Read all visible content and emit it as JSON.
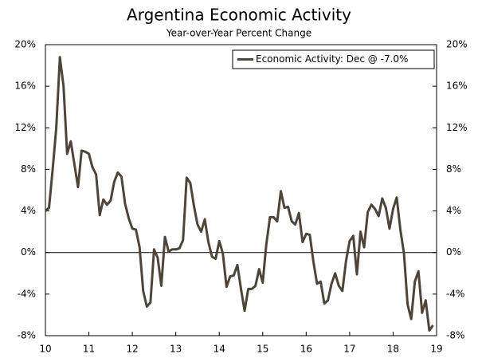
{
  "chart_data": {
    "type": "line",
    "title": "Argentina Economic Activity",
    "subtitle": "Year-over-Year Percent Change",
    "x": [
      10,
      10.083,
      10.167,
      10.25,
      10.333,
      10.417,
      10.5,
      10.583,
      10.667,
      10.75,
      10.833,
      10.917,
      11,
      11.083,
      11.167,
      11.25,
      11.333,
      11.417,
      11.5,
      11.583,
      11.667,
      11.75,
      11.833,
      11.917,
      12,
      12.083,
      12.167,
      12.25,
      12.333,
      12.417,
      12.5,
      12.583,
      12.667,
      12.75,
      12.833,
      12.917,
      13,
      13.083,
      13.167,
      13.25,
      13.333,
      13.417,
      13.5,
      13.583,
      13.667,
      13.75,
      13.833,
      13.917,
      14,
      14.083,
      14.167,
      14.25,
      14.333,
      14.417,
      14.5,
      14.583,
      14.667,
      14.75,
      14.833,
      14.917,
      15,
      15.083,
      15.167,
      15.25,
      15.333,
      15.417,
      15.5,
      15.583,
      15.667,
      15.75,
      15.833,
      15.917,
      16,
      16.083,
      16.167,
      16.25,
      16.333,
      16.417,
      16.5,
      16.583,
      16.667,
      16.75,
      16.833,
      16.917,
      17,
      17.083,
      17.167,
      17.25,
      17.333,
      17.417,
      17.5,
      17.583,
      17.667,
      17.75,
      17.833,
      17.917,
      18,
      18.083,
      18.167,
      18.25,
      18.333,
      18.417,
      18.5,
      18.583,
      18.667,
      18.75,
      18.833,
      18.917
    ],
    "series": [
      {
        "name": "Economic Activity: Dec @ -7.0%",
        "color": "#4d4539",
        "values": [
          4.0,
          4.3,
          8.0,
          12.0,
          18.8,
          16.0,
          9.5,
          10.7,
          8.5,
          6.3,
          9.8,
          9.7,
          9.5,
          8.2,
          7.5,
          3.6,
          5.1,
          4.6,
          5.0,
          6.8,
          7.7,
          7.3,
          4.7,
          3.3,
          2.3,
          2.2,
          0.5,
          -3.7,
          -5.2,
          -4.8,
          0.3,
          -0.5,
          -3.2,
          1.5,
          0.1,
          0.3,
          0.3,
          0.4,
          1.2,
          7.2,
          6.7,
          4.5,
          2.7,
          2.0,
          3.2,
          1.0,
          -0.4,
          -0.6,
          1.1,
          -0.1,
          -3.3,
          -2.3,
          -2.2,
          -1.2,
          -3.5,
          -5.6,
          -3.5,
          -3.5,
          -3.2,
          -1.6,
          -2.9,
          0.8,
          3.4,
          3.4,
          3.0,
          5.9,
          4.3,
          4.4,
          3.0,
          2.7,
          3.8,
          1.0,
          1.8,
          1.7,
          -0.9,
          -3.0,
          -2.8,
          -4.9,
          -4.6,
          -3.0,
          -2.0,
          -3.2,
          -3.7,
          -0.8,
          1.1,
          1.6,
          -2.1,
          2.0,
          0.5,
          3.9,
          4.6,
          4.2,
          3.5,
          5.2,
          4.3,
          2.3,
          4.2,
          5.3,
          2.2,
          -0.1,
          -5.0,
          -6.4,
          -2.8,
          -1.8,
          -5.8,
          -4.6,
          -7.5,
          -7.0
        ]
      }
    ],
    "xlim": [
      10,
      19
    ],
    "xticks": [
      10,
      11,
      12,
      13,
      14,
      15,
      16,
      17,
      18,
      19
    ],
    "ylim": [
      -8,
      20
    ],
    "yticks": [
      {
        "value": -8,
        "label": "-8%"
      },
      {
        "value": -4,
        "label": "-4%"
      },
      {
        "value": 0,
        "label": "0%"
      },
      {
        "value": 4,
        "label": "4%"
      },
      {
        "value": 8,
        "label": "8%"
      },
      {
        "value": 12,
        "label": "12%"
      },
      {
        "value": 16,
        "label": "16%"
      },
      {
        "value": 20,
        "label": "20%"
      }
    ],
    "legend": "top-right",
    "grid": false
  }
}
